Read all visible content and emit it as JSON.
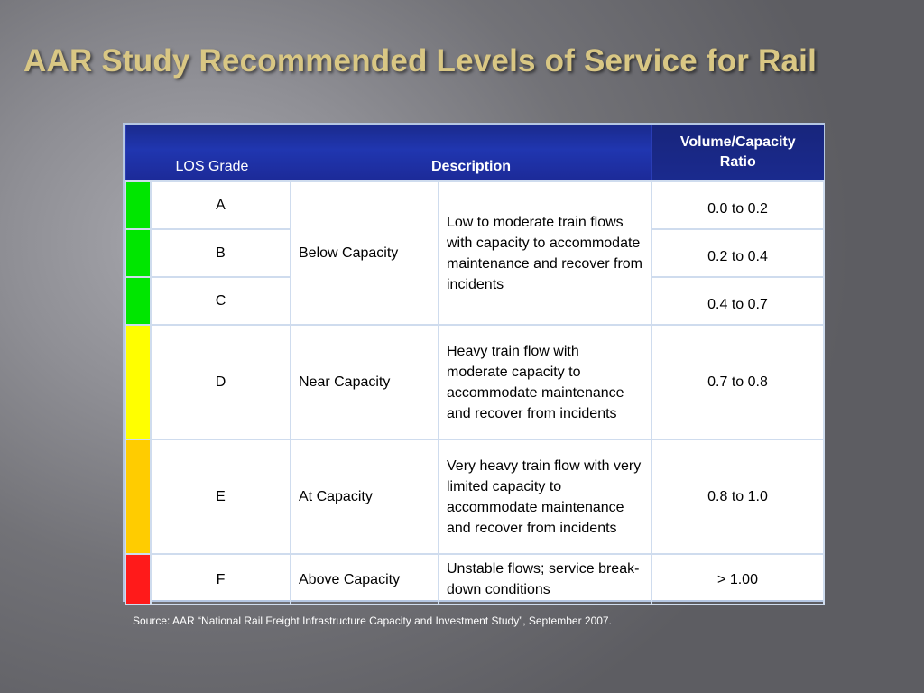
{
  "title": "AAR Study Recommended Levels of Service for Rail",
  "table": {
    "headers": {
      "los_grade": "LOS Grade",
      "description": "Description",
      "vc_ratio_line1": "Volume/Capacity",
      "vc_ratio_line2": "Ratio"
    },
    "rows": [
      {
        "grade": "A",
        "ratio": "0.0 to 0.2",
        "color": "#00e600"
      },
      {
        "grade": "B",
        "ratio": "0.2 to 0.4",
        "color": "#00e600"
      },
      {
        "grade": "C",
        "ratio": "0.4 to 0.7",
        "color": "#00e600"
      },
      {
        "grade": "D",
        "ratio": "0.7 to 0.8",
        "color": "#ffff00"
      },
      {
        "grade": "E",
        "ratio": "0.8 to 1.0",
        "color": "#ffcc00"
      },
      {
        "grade": "F",
        "ratio": "> 1.00",
        "color": "#ff1a1a"
      }
    ],
    "groups": [
      {
        "capacity": "Below Capacity",
        "detail": "Low to moderate train flows with capacity to accommodate maintenance and recover from incidents"
      },
      {
        "capacity": "Near Capacity",
        "detail": "Heavy train flow with moderate capacity to accommodate maintenance and recover from incidents"
      },
      {
        "capacity": "At Capacity",
        "detail": "Very heavy train flow with very limited capacity to accommodate maintenance and recover from incidents"
      },
      {
        "capacity": "Above Capacity",
        "detail": "Unstable flows; service break-down conditions"
      }
    ]
  },
  "source": "Source:  AAR “National Rail Freight Infrastructure Capacity and Investment Study”, September 2007."
}
